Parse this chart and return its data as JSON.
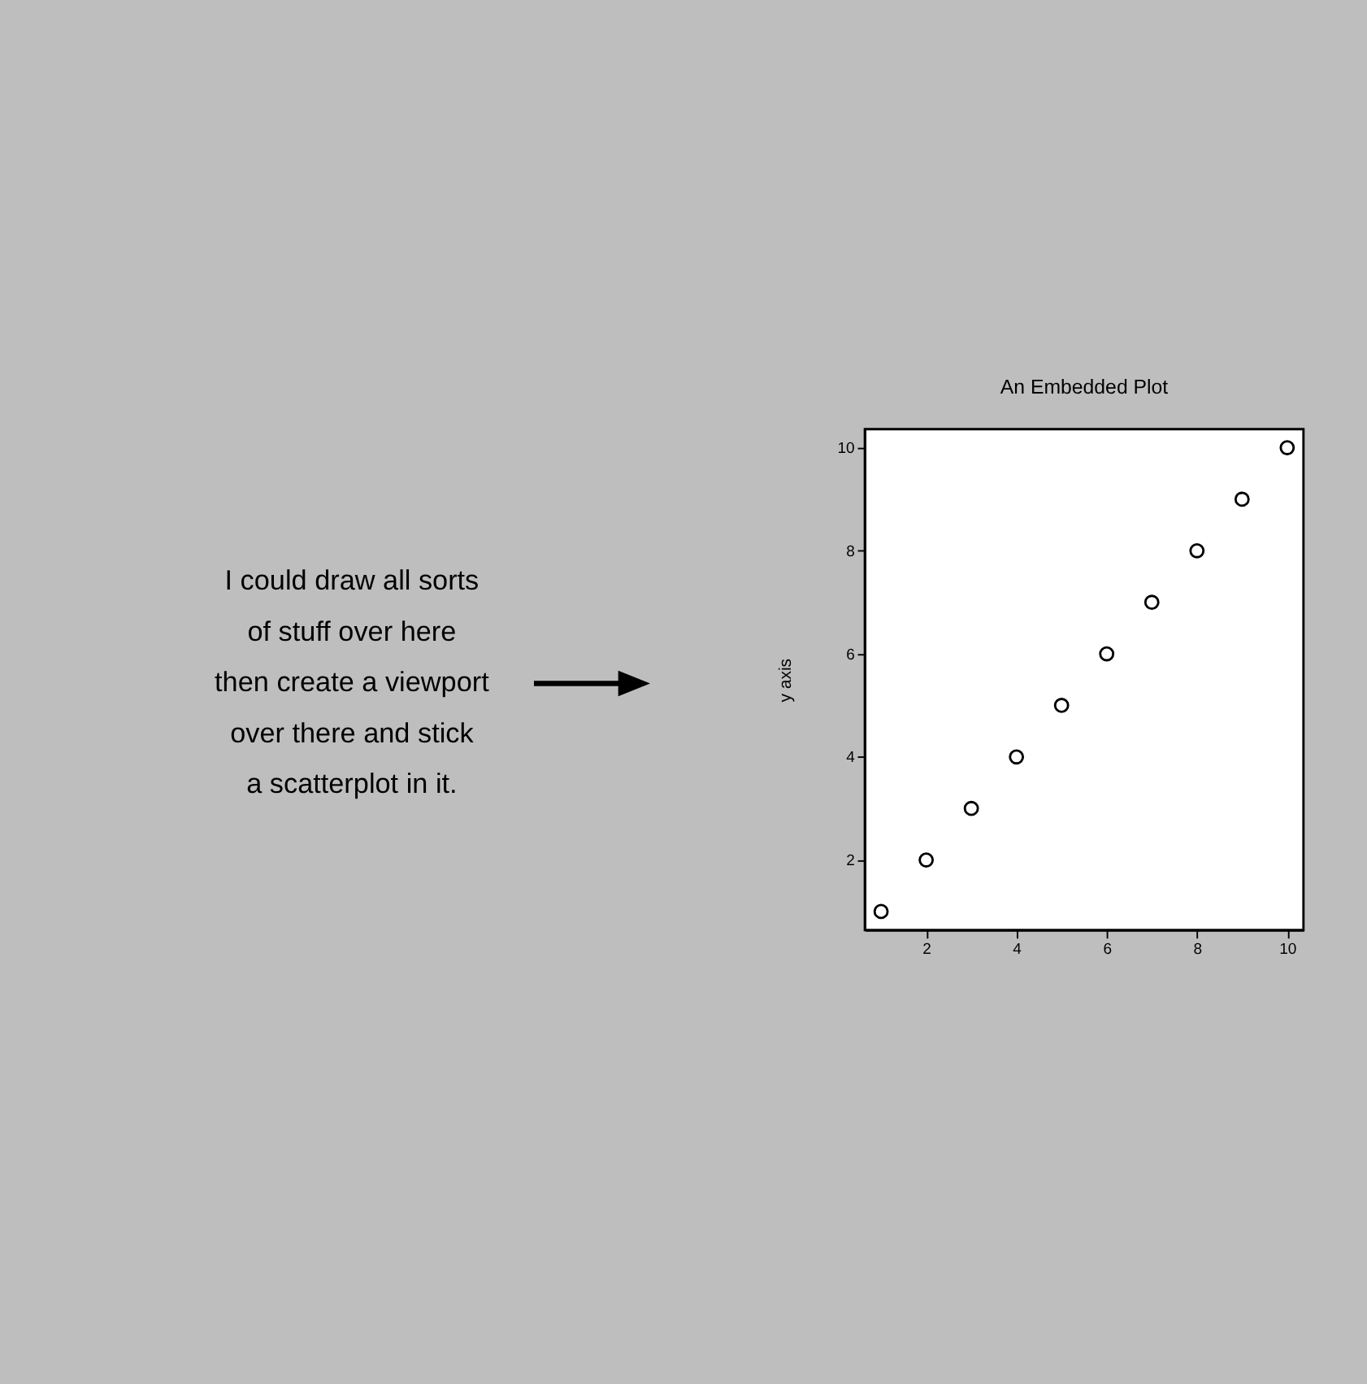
{
  "chart_data": {
    "type": "scatter",
    "title": "An Embedded Plot",
    "ylabel": "y axis",
    "x": [
      1,
      2,
      3,
      4,
      5,
      6,
      7,
      8,
      9,
      10
    ],
    "values": [
      1,
      2,
      3,
      4,
      5,
      6,
      7,
      8,
      9,
      10
    ],
    "color": "#000000",
    "marker": "circle",
    "grid": false,
    "xlim": [
      0.64,
      10.36
    ],
    "ylim": [
      0.64,
      10.36
    ],
    "xticks": [
      2,
      4,
      6,
      8,
      10
    ],
    "yticks": [
      2,
      4,
      6,
      8,
      10
    ],
    "annotations": [
      "I could draw all sorts",
      "of stuff over here",
      "then create a viewport",
      "over there and stick",
      "a scatterplot in it."
    ]
  }
}
